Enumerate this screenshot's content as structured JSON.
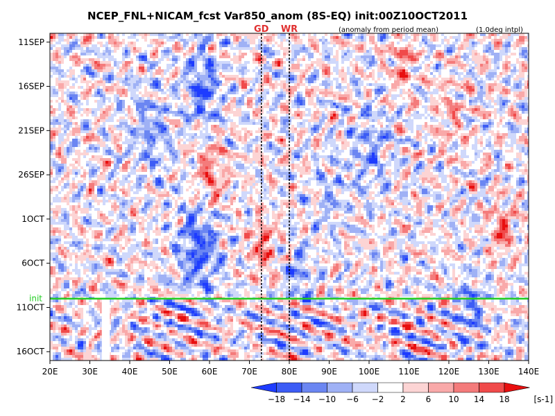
{
  "chart_data": {
    "type": "heatmap",
    "title": "NCEP_FNL+NICAM_fcst Var850_anom (8S-EQ) init:00Z10OCT2011",
    "subtitle": "(anomaly from period mean)",
    "note": "(1.0deg intpl)",
    "xlim": [
      20,
      140
    ],
    "x_ticks": [
      20,
      30,
      40,
      50,
      60,
      70,
      80,
      90,
      100,
      110,
      120,
      130,
      140
    ],
    "x_tick_labels": [
      "20E",
      "30E",
      "40E",
      "50E",
      "60E",
      "70E",
      "80E",
      "90E",
      "100E",
      "110E",
      "120E",
      "130E",
      "140E"
    ],
    "y_tick_labels": [
      "11SEP",
      "16SEP",
      "21SEP",
      "26SEP",
      "1OCT",
      "6OCT",
      "11OCT",
      "16OCT"
    ],
    "y_tick_day_offsets": [
      0,
      5,
      10,
      15,
      20,
      25,
      30,
      35
    ],
    "y_range_day_offsets": [
      -1,
      36
    ],
    "init_line": {
      "label": "init",
      "day_offset": 29,
      "color": "#22cc22"
    },
    "markers": [
      {
        "label": "GD",
        "lon": 73
      },
      {
        "label": "WR",
        "lon": 80
      }
    ],
    "missing_band_lon": [
      33,
      35
    ],
    "colorbar": {
      "levels": [
        -18,
        -14,
        -10,
        -6,
        -2,
        2,
        6,
        10,
        14,
        18
      ],
      "level_labels": [
        "−18",
        "−14",
        "−10",
        "−6",
        "−2",
        "2",
        "6",
        "10",
        "14",
        "18"
      ],
      "colors": [
        "#1e3cff",
        "#3c5cf5",
        "#6b86f2",
        "#9fb1f5",
        "#cfd8fb",
        "#ffffff",
        "#fcd4d4",
        "#f9a9a9",
        "#f47b7b",
        "#f04a4a",
        "#e80f0f"
      ],
      "unit": "[s-1]"
    }
  }
}
